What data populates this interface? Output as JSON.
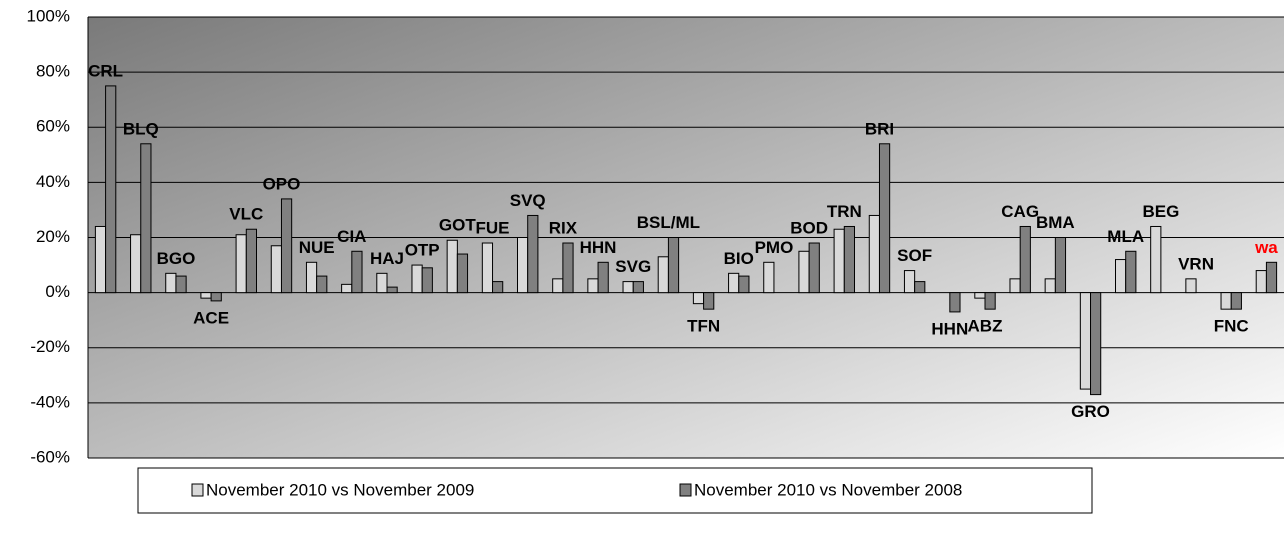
{
  "chart_data": {
    "type": "bar",
    "categories": [
      "CRL",
      "BLQ",
      "BGO",
      "ACE",
      "VLC",
      "OPO",
      "NUE",
      "CIA",
      "HAJ",
      "OTP",
      "GOT",
      "FUE",
      "SVQ",
      "RIX",
      "HHN",
      "SVG",
      "BSL/ML",
      "TFN",
      "BIO",
      "PMO",
      "BOD",
      "TRN",
      "BRI",
      "SOF",
      "HHN",
      "ABZ",
      "CAG",
      "BMA",
      "GRO",
      "MLA",
      "BEG",
      "VRN",
      "FNC",
      "wa"
    ],
    "category_colors": {
      "33": "#ff0000"
    },
    "series": [
      {
        "name": "November 2010 vs November 2009",
        "color": "#d9d9d9",
        "values": [
          24,
          21,
          7,
          -2,
          21,
          17,
          11,
          3,
          7,
          10,
          19,
          18,
          20,
          5,
          5,
          4,
          13,
          -4,
          7,
          11,
          15,
          23,
          28,
          8,
          null,
          -2,
          5,
          5,
          -35,
          12,
          24,
          5,
          -6,
          8
        ]
      },
      {
        "name": "November 2010 vs November 2008",
        "color": "#808080",
        "values": [
          75,
          54,
          6,
          -3,
          23,
          34,
          6,
          15,
          2,
          9,
          14,
          4,
          28,
          18,
          11,
          4,
          20,
          -6,
          6,
          null,
          18,
          24,
          54,
          4,
          -7,
          -6,
          24,
          20,
          -37,
          15,
          null,
          null,
          -6,
          11
        ]
      }
    ],
    "ylim": [
      -60,
      100
    ],
    "yticks": [
      {
        "value": -60,
        "label": "-60%"
      },
      {
        "value": -40,
        "label": "-40%"
      },
      {
        "value": -20,
        "label": "-20%"
      },
      {
        "value": 0,
        "label": "0%"
      },
      {
        "value": 20,
        "label": "20%"
      },
      {
        "value": 40,
        "label": "40%"
      },
      {
        "value": 60,
        "label": "60%"
      },
      {
        "value": 80,
        "label": "80%"
      },
      {
        "value": 100,
        "label": "100%"
      }
    ],
    "grid": true,
    "legend": "bottom"
  }
}
